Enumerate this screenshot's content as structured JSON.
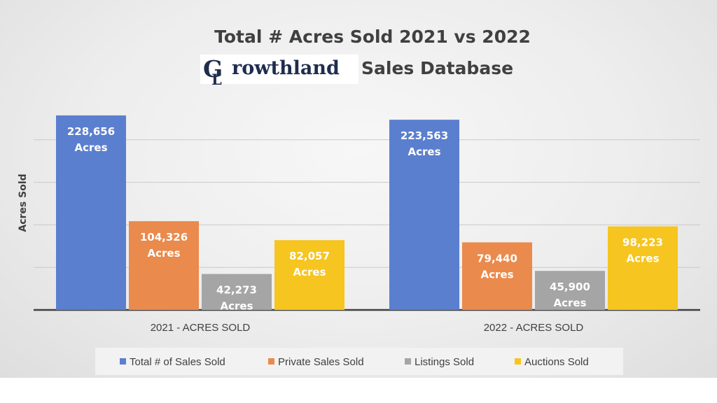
{
  "chart_data": {
    "type": "bar",
    "title": "Total # Acres Sold 2021 vs 2022",
    "subtitle_brand": "Growthland",
    "subtitle_rest": "Sales Database",
    "ylabel": "Acres Sold",
    "xlabel": "",
    "ylim": [
      0,
      250000
    ],
    "grid": true,
    "legend_position": "bottom",
    "categories": [
      "2021 - ACRES SOLD",
      "2022 - ACRES SOLD"
    ],
    "value_suffix": "Acres",
    "series": [
      {
        "name": "Total # of Sales Sold",
        "color": "#5b7fcf",
        "values": [
          228656,
          223563
        ],
        "labels": [
          "228,656",
          "223,563"
        ]
      },
      {
        "name": "Private Sales Sold",
        "color": "#ea8a4c",
        "values": [
          104326,
          79440
        ],
        "labels": [
          "104,326",
          "79,440"
        ]
      },
      {
        "name": "Listings Sold",
        "color": "#a5a5a5",
        "values": [
          42273,
          45900
        ],
        "labels": [
          "42,273",
          "45,900"
        ]
      },
      {
        "name": "Auctions  Sold",
        "color": "#f6c51f",
        "values": [
          82057,
          98223
        ],
        "labels": [
          "82,057",
          "98,223"
        ]
      }
    ]
  }
}
